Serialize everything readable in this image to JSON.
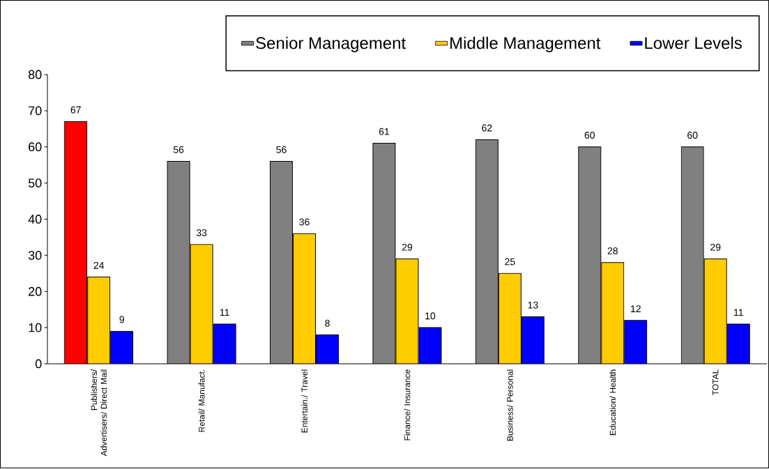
{
  "chart_data": {
    "type": "bar",
    "categories": [
      "Publishers/ Advertisers/ Direct Mail",
      "Retail/ Manufact.",
      "Entertain./ Travel",
      "Finance/ Insurance",
      "Business/ Personal",
      "Education/ Health",
      "TOTAL"
    ],
    "series": [
      {
        "name": "Senior Management",
        "color": "#808080",
        "colors": [
          "#ff0000",
          "#808080",
          "#808080",
          "#808080",
          "#808080",
          "#808080",
          "#808080"
        ],
        "values": [
          67,
          56,
          56,
          61,
          62,
          60,
          60
        ]
      },
      {
        "name": "Middle Management",
        "color": "#ffcc00",
        "values": [
          24,
          33,
          36,
          29,
          25,
          28,
          29
        ]
      },
      {
        "name": "Lower Levels",
        "color": "#0000ff",
        "values": [
          9,
          11,
          8,
          10,
          13,
          12,
          11
        ]
      }
    ],
    "ylim": [
      0,
      80
    ],
    "yticks": [
      0,
      10,
      20,
      30,
      40,
      50,
      60,
      70,
      80
    ],
    "data_labels": true,
    "legend": "top right"
  }
}
